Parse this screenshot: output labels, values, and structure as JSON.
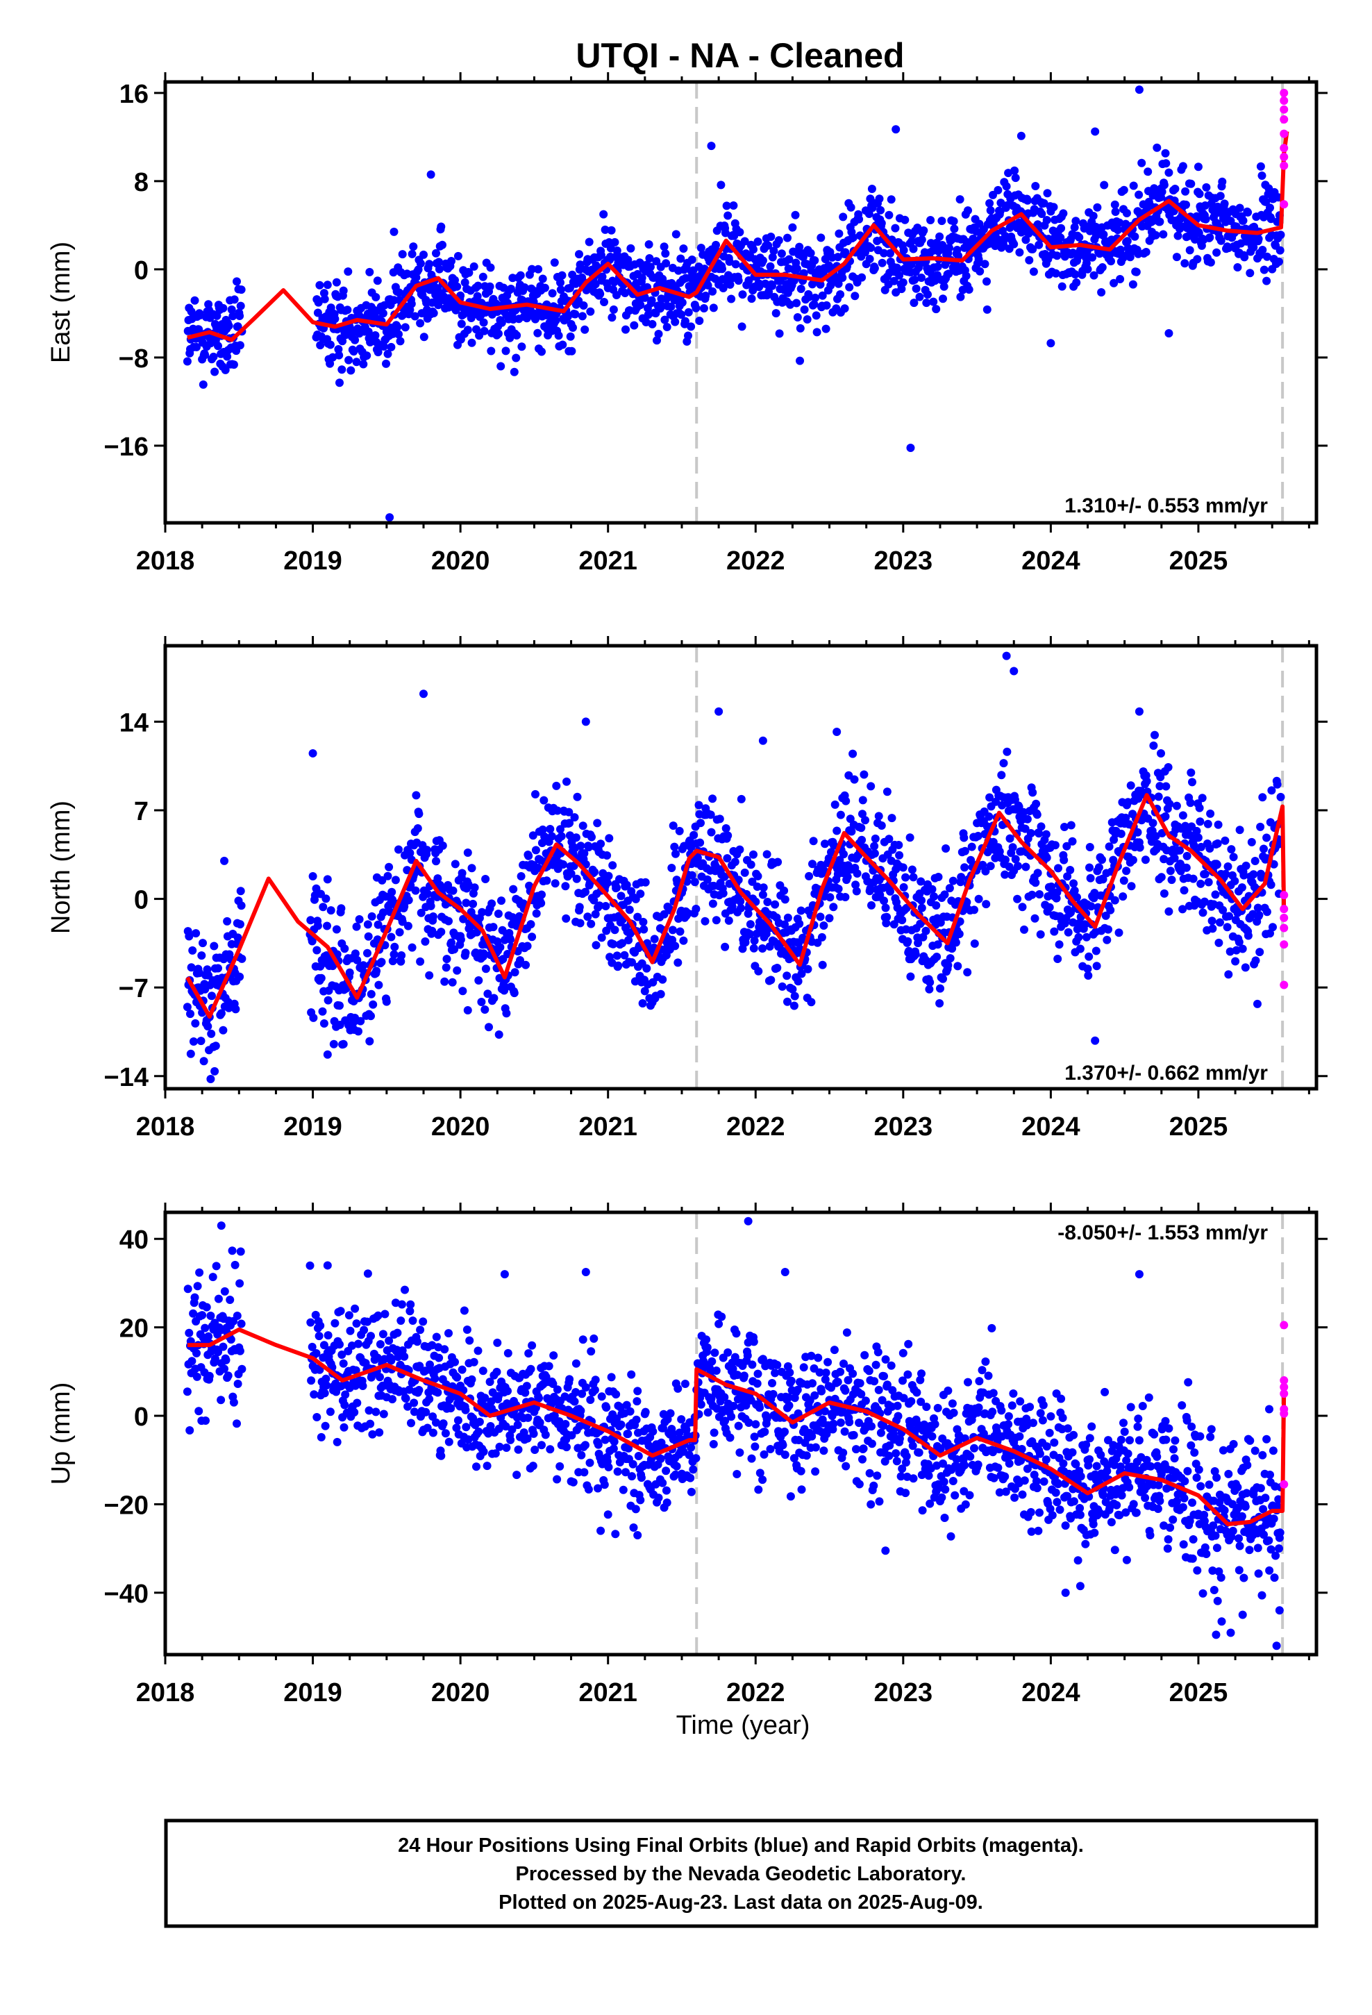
{
  "title": "UTQI  - NA - Cleaned",
  "xlabel": "Time (year)",
  "footer": {
    "line1": "24 Hour Positions Using Final Orbits (blue) and Rapid Orbits (magenta).",
    "line2": "Processed by the Nevada Geodetic Laboratory.",
    "line3": "Plotted on 2025-Aug-23. Last data on 2025-Aug-09."
  },
  "colors": {
    "final": "#0000ff",
    "rapid": "#ff00ff",
    "model": "#ff0000",
    "event": "#c8c8c8"
  },
  "chart_data": [
    {
      "type": "scatter",
      "ylabel": "East (mm)",
      "rate": "1.310+/- 0.553 mm/yr",
      "xlim": [
        2018.0,
        2025.8
      ],
      "ylim": [
        -23,
        17
      ],
      "xticks": [
        2018,
        2019,
        2020,
        2021,
        2022,
        2023,
        2024,
        2025
      ],
      "yticks": [
        16,
        8,
        0,
        -8,
        -16
      ],
      "ytick_labels": [
        "16",
        "8",
        "0",
        "−8",
        "−16"
      ],
      "event_lines": [
        2021.6,
        2025.57
      ],
      "gaps": [
        [
          2018.52,
          2019.02
        ]
      ],
      "model": {
        "x": [
          2018.15,
          2018.3,
          2018.45,
          2018.6,
          2018.8,
          2019.0,
          2019.15,
          2019.3,
          2019.5,
          2019.7,
          2019.85,
          2020.0,
          2020.2,
          2020.45,
          2020.7,
          2020.85,
          2021.0,
          2021.2,
          2021.35,
          2021.55,
          2021.6,
          2021.8,
          2022.0,
          2022.2,
          2022.45,
          2022.6,
          2022.8,
          2023.0,
          2023.2,
          2023.4,
          2023.6,
          2023.8,
          2024.0,
          2024.2,
          2024.4,
          2024.6,
          2024.8,
          2025.0,
          2025.2,
          2025.4,
          2025.56,
          2025.58,
          2025.6
        ],
        "y": [
          -6.2,
          -5.7,
          -6.4,
          -4.5,
          -1.9,
          -4.8,
          -5.2,
          -4.6,
          -5.0,
          -1.5,
          -0.8,
          -3.0,
          -3.6,
          -3.2,
          -3.8,
          -1.2,
          0.5,
          -2.3,
          -1.7,
          -2.5,
          -2.1,
          2.6,
          -0.5,
          -0.5,
          -1.0,
          0.5,
          4.0,
          0.9,
          1.0,
          0.8,
          3.5,
          5.0,
          2.0,
          2.2,
          1.8,
          4.5,
          6.2,
          4.0,
          3.5,
          3.3,
          3.8,
          10.5,
          12.5
        ]
      },
      "rapid": {
        "x": 2025.58,
        "y": [
          16.0,
          15.3,
          14.5,
          13.6,
          12.3,
          11.0,
          10.2,
          9.4,
          5.9
        ]
      },
      "outliers": [
        [
          2019.52,
          -22.5
        ],
        [
          2023.05,
          -16.2
        ],
        [
          2019.8,
          8.6
        ],
        [
          2024.6,
          16.3
        ],
        [
          2022.95,
          12.7
        ],
        [
          2021.7,
          11.2
        ],
        [
          2023.8,
          12.1
        ],
        [
          2024.3,
          12.5
        ],
        [
          2019.55,
          3.4
        ],
        [
          2022.3,
          -8.3
        ],
        [
          2024.0,
          -6.7
        ],
        [
          2024.8,
          -5.8
        ],
        [
          2025.0,
          9.3
        ]
      ]
    },
    {
      "type": "scatter",
      "ylabel": "North (mm)",
      "rate": "1.370+/- 0.662 mm/yr",
      "xlim": [
        2018.0,
        2025.8
      ],
      "ylim": [
        -15,
        20
      ],
      "xticks": [
        2018,
        2019,
        2020,
        2021,
        2022,
        2023,
        2024,
        2025
      ],
      "yticks": [
        14,
        7,
        0,
        -7,
        -14
      ],
      "ytick_labels": [
        "14",
        "7",
        "0",
        "−7",
        "−14"
      ],
      "event_lines": [
        2021.6,
        2025.57
      ],
      "gaps": [
        [
          2018.52,
          2018.98
        ]
      ],
      "model": {
        "x": [
          2018.15,
          2018.3,
          2018.5,
          2018.7,
          2018.9,
          2019.1,
          2019.3,
          2019.5,
          2019.7,
          2019.85,
          2020.0,
          2020.15,
          2020.3,
          2020.5,
          2020.65,
          2020.8,
          2021.0,
          2021.15,
          2021.3,
          2021.45,
          2021.55,
          2021.6,
          2021.75,
          2021.9,
          2022.1,
          2022.3,
          2022.45,
          2022.6,
          2022.75,
          2022.9,
          2023.1,
          2023.3,
          2023.45,
          2023.65,
          2023.8,
          2024.0,
          2024.15,
          2024.3,
          2024.45,
          2024.65,
          2024.8,
          2024.95,
          2025.15,
          2025.3,
          2025.45,
          2025.57,
          2025.58
        ],
        "y": [
          -6.2,
          -9.3,
          -4.0,
          1.6,
          -1.8,
          -3.8,
          -7.8,
          -2.5,
          3.0,
          0.5,
          -0.8,
          -2.5,
          -6.2,
          1.0,
          4.3,
          2.8,
          0.2,
          -1.8,
          -5.0,
          -0.8,
          3.2,
          3.8,
          3.3,
          0.5,
          -2.0,
          -5.2,
          0.8,
          5.2,
          3.3,
          1.5,
          -1.2,
          -3.5,
          1.5,
          6.8,
          4.5,
          2.2,
          -0.2,
          -2.2,
          2.5,
          8.2,
          5.0,
          3.8,
          1.5,
          -0.8,
          1.2,
          7.3,
          -1.0
        ]
      },
      "rapid": {
        "x": 2025.58,
        "y": [
          0.3,
          -0.8,
          -1.5,
          -2.3,
          -3.6,
          -6.8
        ]
      },
      "outliers": [
        [
          2019.0,
          11.5
        ],
        [
          2019.75,
          16.2
        ],
        [
          2020.85,
          14.0
        ],
        [
          2023.7,
          19.2
        ],
        [
          2023.75,
          18.0
        ],
        [
          2024.3,
          -11.2
        ],
        [
          2019.1,
          -12.3
        ],
        [
          2024.6,
          14.8
        ],
        [
          2022.55,
          13.2
        ],
        [
          2021.75,
          14.8
        ],
        [
          2022.05,
          12.5
        ],
        [
          2025.4,
          -8.3
        ],
        [
          2020.05,
          -8.8
        ],
        [
          2018.4,
          3.0
        ]
      ]
    },
    {
      "type": "scatter",
      "ylabel": "Up (mm)",
      "rate": "-8.050+/- 1.553 mm/yr",
      "xlim": [
        2018.0,
        2025.8
      ],
      "ylim": [
        -54,
        46
      ],
      "xticks": [
        2018,
        2019,
        2020,
        2021,
        2022,
        2023,
        2024,
        2025
      ],
      "yticks": [
        40,
        20,
        0,
        -20,
        -40
      ],
      "ytick_labels": [
        "40",
        "20",
        "0",
        "−20",
        "−40"
      ],
      "event_lines": [
        2021.6,
        2025.57
      ],
      "gaps": [
        [
          2018.52,
          2018.98
        ]
      ],
      "model": {
        "x": [
          2018.15,
          2018.3,
          2018.5,
          2018.75,
          2019.0,
          2019.2,
          2019.5,
          2019.75,
          2020.0,
          2020.2,
          2020.5,
          2020.75,
          2021.0,
          2021.3,
          2021.55,
          2021.59,
          2021.6,
          2021.8,
          2022.0,
          2022.25,
          2022.5,
          2022.75,
          2023.0,
          2023.25,
          2023.5,
          2023.75,
          2024.0,
          2024.25,
          2024.5,
          2024.75,
          2025.0,
          2025.2,
          2025.35,
          2025.5,
          2025.57,
          2025.58
        ],
        "y": [
          16.0,
          16.0,
          19.5,
          16.0,
          13.0,
          8.0,
          11.5,
          8.0,
          5.0,
          0.0,
          3.0,
          0.0,
          -3.5,
          -9.0,
          -5.5,
          -5.5,
          10.5,
          7.0,
          5.0,
          -1.5,
          3.0,
          1.0,
          -3.0,
          -9.0,
          -5.0,
          -8.0,
          -12.0,
          -17.5,
          -13.0,
          -14.5,
          -18.0,
          -24.5,
          -24.0,
          -21.5,
          -21.5,
          5.5
        ]
      },
      "rapid": {
        "x": 2025.58,
        "y": [
          20.5,
          8.0,
          6.5,
          5.0,
          1.5,
          0.5,
          -15.5
        ]
      },
      "outliers": [
        [
          2021.95,
          44.0
        ],
        [
          2018.38,
          43.0
        ],
        [
          2024.6,
          32.0
        ],
        [
          2022.2,
          32.5
        ],
        [
          2020.3,
          32.0
        ],
        [
          2020.85,
          32.5
        ],
        [
          2019.1,
          34.0
        ],
        [
          2023.6,
          19.8
        ],
        [
          2025.12,
          -49.5
        ],
        [
          2025.53,
          -52.0
        ],
        [
          2025.55,
          -44.0
        ],
        [
          2024.1,
          -40.0
        ],
        [
          2024.2,
          -38.5
        ],
        [
          2022.88,
          -30.5
        ],
        [
          2020.95,
          -26.0
        ],
        [
          2021.2,
          -27.0
        ],
        [
          2025.3,
          -45.0
        ],
        [
          2025.48,
          1.5
        ]
      ]
    }
  ]
}
